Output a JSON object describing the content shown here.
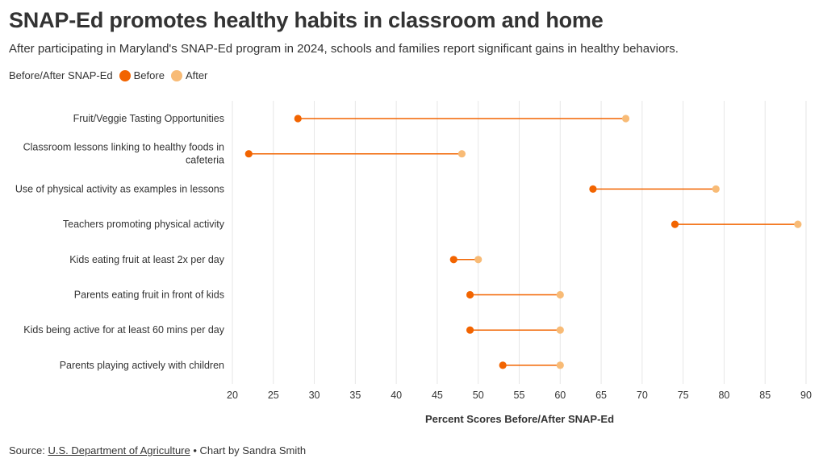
{
  "title": "SNAP-Ed promotes healthy habits in classroom and home",
  "subtitle": "After participating in Maryland's SNAP-Ed program in 2024, schools and families report significant gains in healthy behaviors.",
  "legend": {
    "title": "Before/After SNAP-Ed",
    "items": [
      {
        "label": "Before",
        "color": "#f26400"
      },
      {
        "label": "After",
        "color": "#f8bb76"
      }
    ]
  },
  "footer": {
    "source_prefix": "Source:",
    "source_link": "U.S. Department of Agriculture",
    "credit": "• Chart by Sandra Smith"
  },
  "chart_data": {
    "type": "dumbbell",
    "xlabel": "Percent Scores Before/After SNAP-Ed",
    "xlim": [
      20,
      90
    ],
    "xticks": [
      20,
      25,
      30,
      35,
      40,
      45,
      50,
      55,
      60,
      65,
      70,
      75,
      80,
      85,
      90
    ],
    "grid": true,
    "legend_position": "top-left",
    "categories": [
      [
        "Fruit/Veggie Tasting Opportunities"
      ],
      [
        "Classroom lessons linking to healthy foods in",
        "cafeteria"
      ],
      [
        "Use of physical activity as examples in lessons"
      ],
      [
        "Teachers promoting physical activity"
      ],
      [
        "Kids eating fruit at least 2x per day"
      ],
      [
        "Parents eating fruit in front of kids"
      ],
      [
        "Kids being active for at least 60 mins per day"
      ],
      [
        "Parents playing actively with children"
      ]
    ],
    "series": [
      {
        "name": "Before",
        "color": "#f26400",
        "values": [
          28,
          22,
          64,
          74,
          47,
          49,
          49,
          53
        ]
      },
      {
        "name": "After",
        "color": "#f8bb76",
        "values": [
          68,
          48,
          79,
          89,
          50,
          60,
          60,
          60
        ]
      }
    ],
    "connector_color": "#f26400"
  }
}
